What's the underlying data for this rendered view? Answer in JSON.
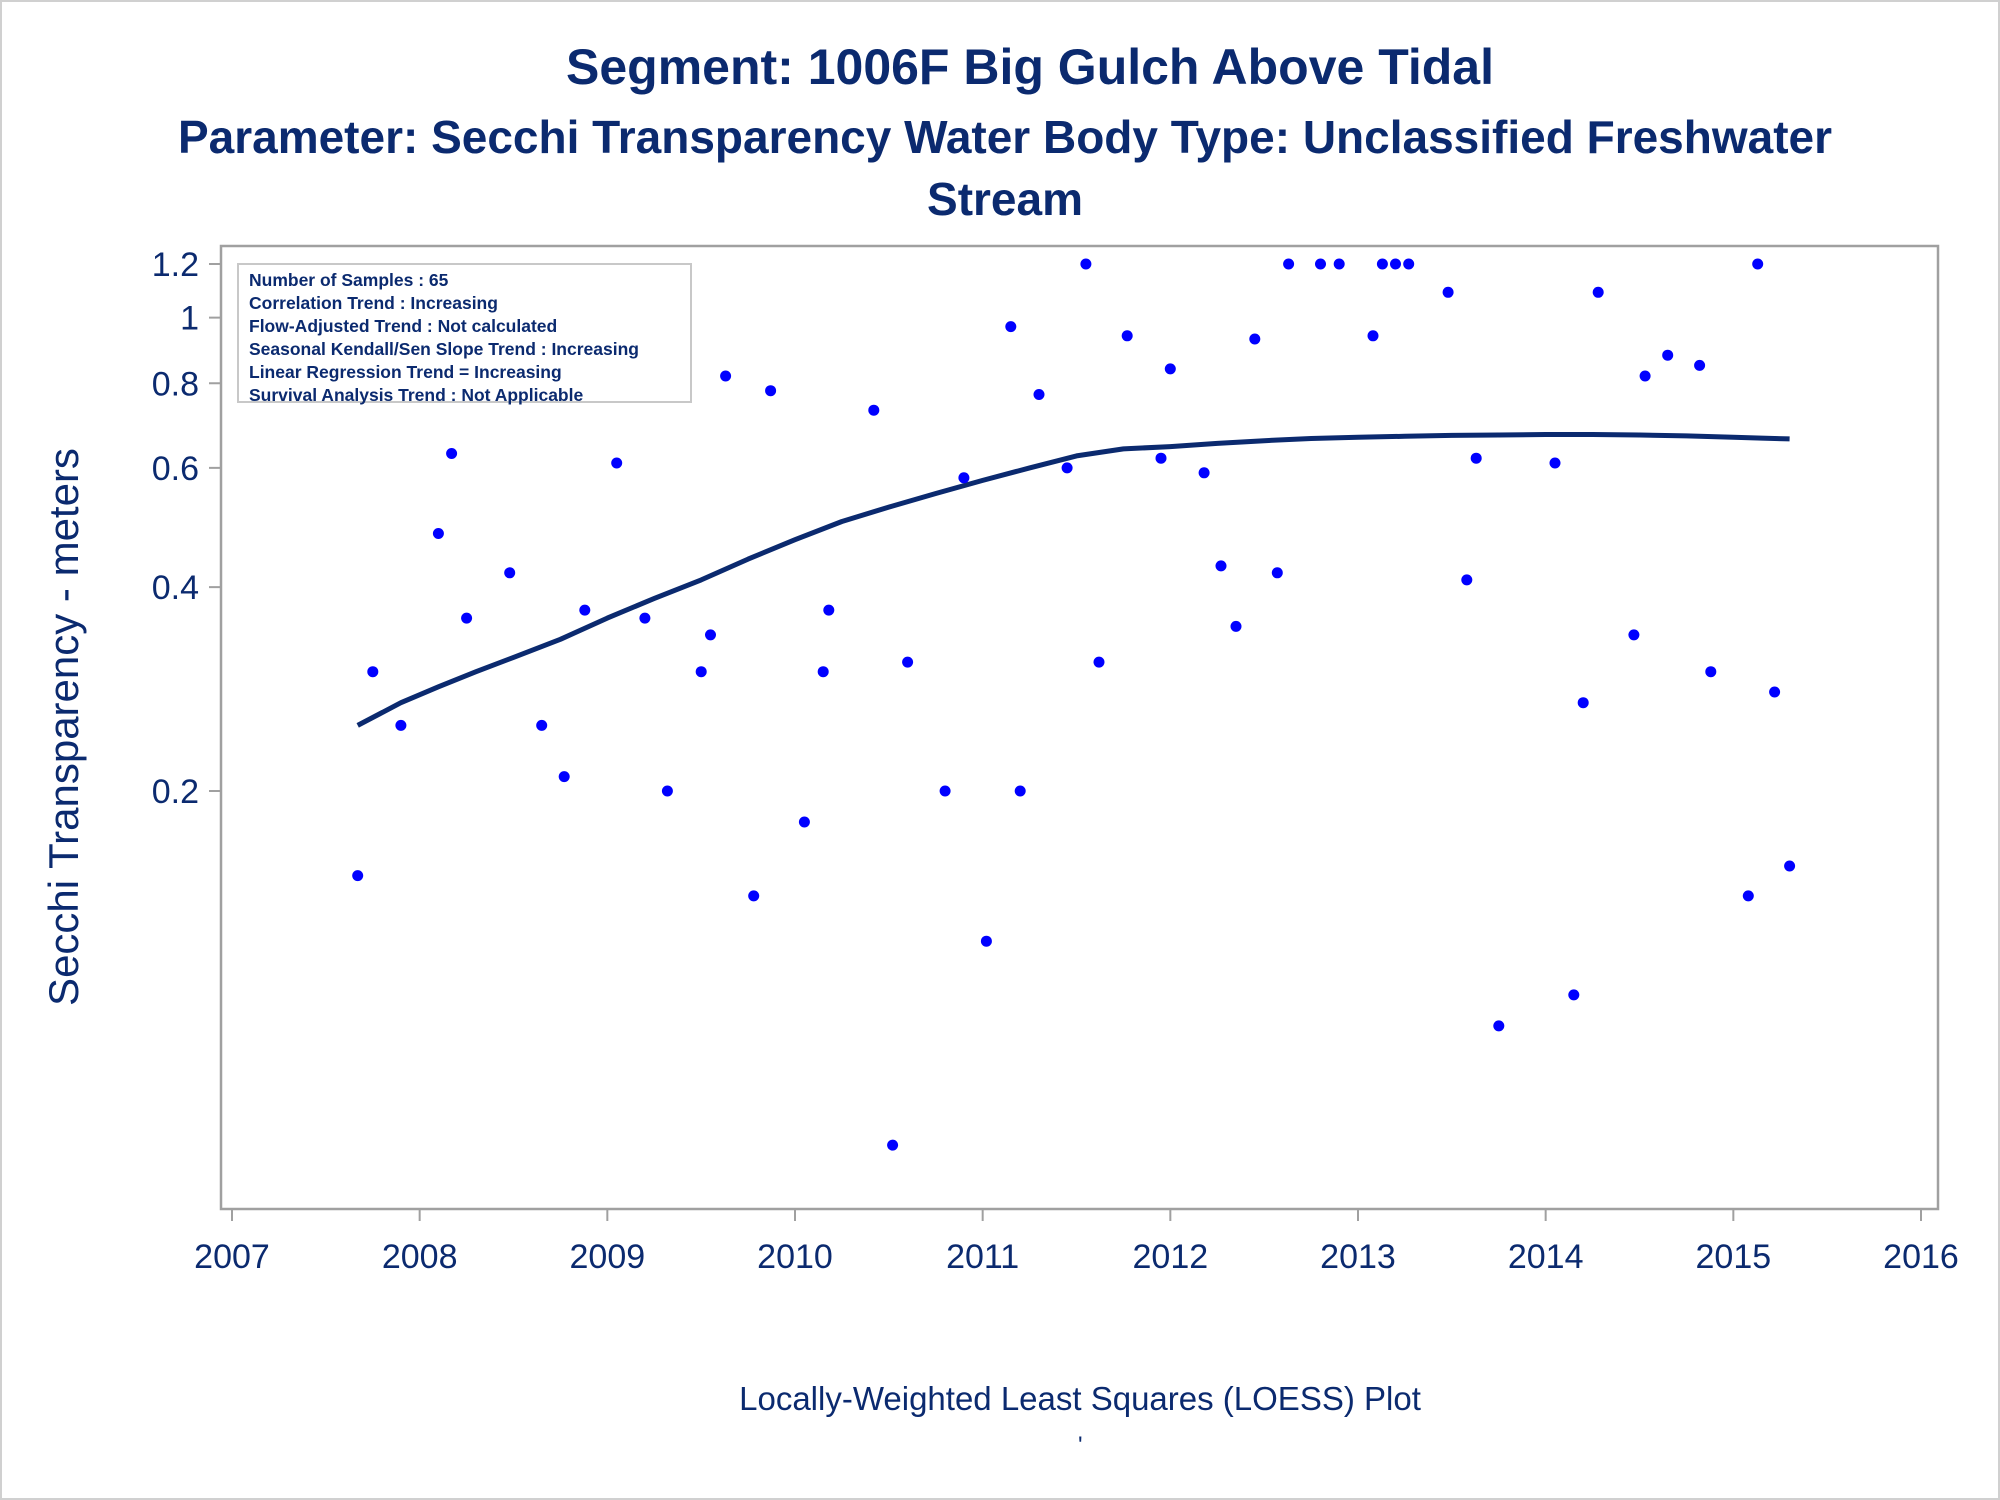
{
  "title": "Segment: 1006F  Big Gulch Above Tidal",
  "subtitle": "Parameter: Secchi Transparency   Water Body Type: Unclassified Freshwater Stream",
  "footnote": "Locally-Weighted Least Squares (LOESS) Plot",
  "footnote_mark": "'",
  "stats": [
    "Number of Samples : 65",
    "Correlation Trend : Increasing",
    "Flow-Adjusted Trend : Not calculated",
    "Seasonal Kendall/Sen Slope Trend : Increasing",
    "Linear Regression Trend = Increasing",
    "Survival Analysis Trend : Not Applicable"
  ],
  "colors": {
    "text": "#0b2a6f",
    "points": "#0000ff",
    "loess": "#0b2a6f",
    "axis": "#a0a0a0"
  },
  "chart_data": {
    "type": "scatter",
    "ylabel": "Secchi Transparency - meters",
    "xlabel": "",
    "y_scale": "log",
    "xlim": [
      2007,
      2016
    ],
    "ylim": [
      0.06,
      1.25
    ],
    "x_ticks": [
      2007,
      2008,
      2009,
      2010,
      2011,
      2012,
      2013,
      2014,
      2015,
      2016
    ],
    "y_ticks": [
      0.2,
      0.4,
      0.6,
      0.8,
      1,
      1.2
    ],
    "y_tick_labels": [
      "0.2",
      "0.4",
      "0.6",
      "0.8",
      "1",
      "1.2"
    ],
    "grid": false,
    "legend": "top-left",
    "points": [
      [
        2007.67,
        0.15
      ],
      [
        2007.75,
        0.3
      ],
      [
        2007.9,
        0.25
      ],
      [
        2008.1,
        0.48
      ],
      [
        2008.17,
        0.63
      ],
      [
        2008.25,
        0.36
      ],
      [
        2008.48,
        0.42
      ],
      [
        2008.65,
        0.25
      ],
      [
        2008.77,
        0.21
      ],
      [
        2008.88,
        0.37
      ],
      [
        2009.05,
        0.61
      ],
      [
        2009.2,
        0.36
      ],
      [
        2009.32,
        0.2
      ],
      [
        2009.5,
        0.3
      ],
      [
        2009.55,
        0.34
      ],
      [
        2009.63,
        0.82
      ],
      [
        2009.78,
        0.14
      ],
      [
        2009.87,
        0.78
      ],
      [
        2010.05,
        0.18
      ],
      [
        2010.15,
        0.3
      ],
      [
        2010.18,
        0.37
      ],
      [
        2010.42,
        0.73
      ],
      [
        2010.52,
        0.06
      ],
      [
        2010.6,
        0.31
      ],
      [
        2010.8,
        0.2
      ],
      [
        2010.9,
        0.58
      ],
      [
        2011.02,
        0.12
      ],
      [
        2011.15,
        0.97
      ],
      [
        2011.2,
        0.2
      ],
      [
        2011.3,
        0.77
      ],
      [
        2011.45,
        0.6
      ],
      [
        2011.55,
        1.2
      ],
      [
        2011.62,
        0.31
      ],
      [
        2011.77,
        0.94
      ],
      [
        2011.95,
        0.62
      ],
      [
        2012.0,
        0.84
      ],
      [
        2012.18,
        0.59
      ],
      [
        2012.27,
        0.43
      ],
      [
        2012.35,
        0.35
      ],
      [
        2012.45,
        0.93
      ],
      [
        2012.57,
        0.42
      ],
      [
        2012.63,
        1.2
      ],
      [
        2012.8,
        1.2
      ],
      [
        2012.9,
        1.2
      ],
      [
        2013.08,
        0.94
      ],
      [
        2013.13,
        1.2
      ],
      [
        2013.2,
        1.2
      ],
      [
        2013.27,
        1.2
      ],
      [
        2013.48,
        1.09
      ],
      [
        2013.58,
        0.41
      ],
      [
        2013.63,
        0.62
      ],
      [
        2013.75,
        0.09
      ],
      [
        2014.05,
        0.61
      ],
      [
        2014.15,
        0.1
      ],
      [
        2014.2,
        0.27
      ],
      [
        2014.28,
        1.09
      ],
      [
        2014.47,
        0.34
      ],
      [
        2014.53,
        0.82
      ],
      [
        2014.65,
        0.88
      ],
      [
        2014.82,
        0.85
      ],
      [
        2014.88,
        0.3
      ],
      [
        2015.08,
        0.14
      ],
      [
        2015.13,
        1.2
      ],
      [
        2015.22,
        0.28
      ],
      [
        2015.3,
        0.155
      ]
    ],
    "loess": [
      [
        2007.67,
        0.25
      ],
      [
        2007.9,
        0.27
      ],
      [
        2008.1,
        0.285
      ],
      [
        2008.3,
        0.3
      ],
      [
        2008.5,
        0.315
      ],
      [
        2008.75,
        0.335
      ],
      [
        2009.0,
        0.36
      ],
      [
        2009.25,
        0.385
      ],
      [
        2009.5,
        0.41
      ],
      [
        2009.75,
        0.44
      ],
      [
        2010.0,
        0.47
      ],
      [
        2010.25,
        0.5
      ],
      [
        2010.5,
        0.525
      ],
      [
        2010.75,
        0.55
      ],
      [
        2011.0,
        0.575
      ],
      [
        2011.25,
        0.6
      ],
      [
        2011.5,
        0.625
      ],
      [
        2011.75,
        0.64
      ],
      [
        2012.0,
        0.645
      ],
      [
        2012.25,
        0.652
      ],
      [
        2012.5,
        0.658
      ],
      [
        2012.75,
        0.663
      ],
      [
        2013.0,
        0.666
      ],
      [
        2013.25,
        0.668
      ],
      [
        2013.5,
        0.67
      ],
      [
        2013.75,
        0.671
      ],
      [
        2014.0,
        0.672
      ],
      [
        2014.25,
        0.672
      ],
      [
        2014.5,
        0.671
      ],
      [
        2014.75,
        0.669
      ],
      [
        2015.0,
        0.666
      ],
      [
        2015.15,
        0.664
      ],
      [
        2015.3,
        0.662
      ]
    ]
  }
}
